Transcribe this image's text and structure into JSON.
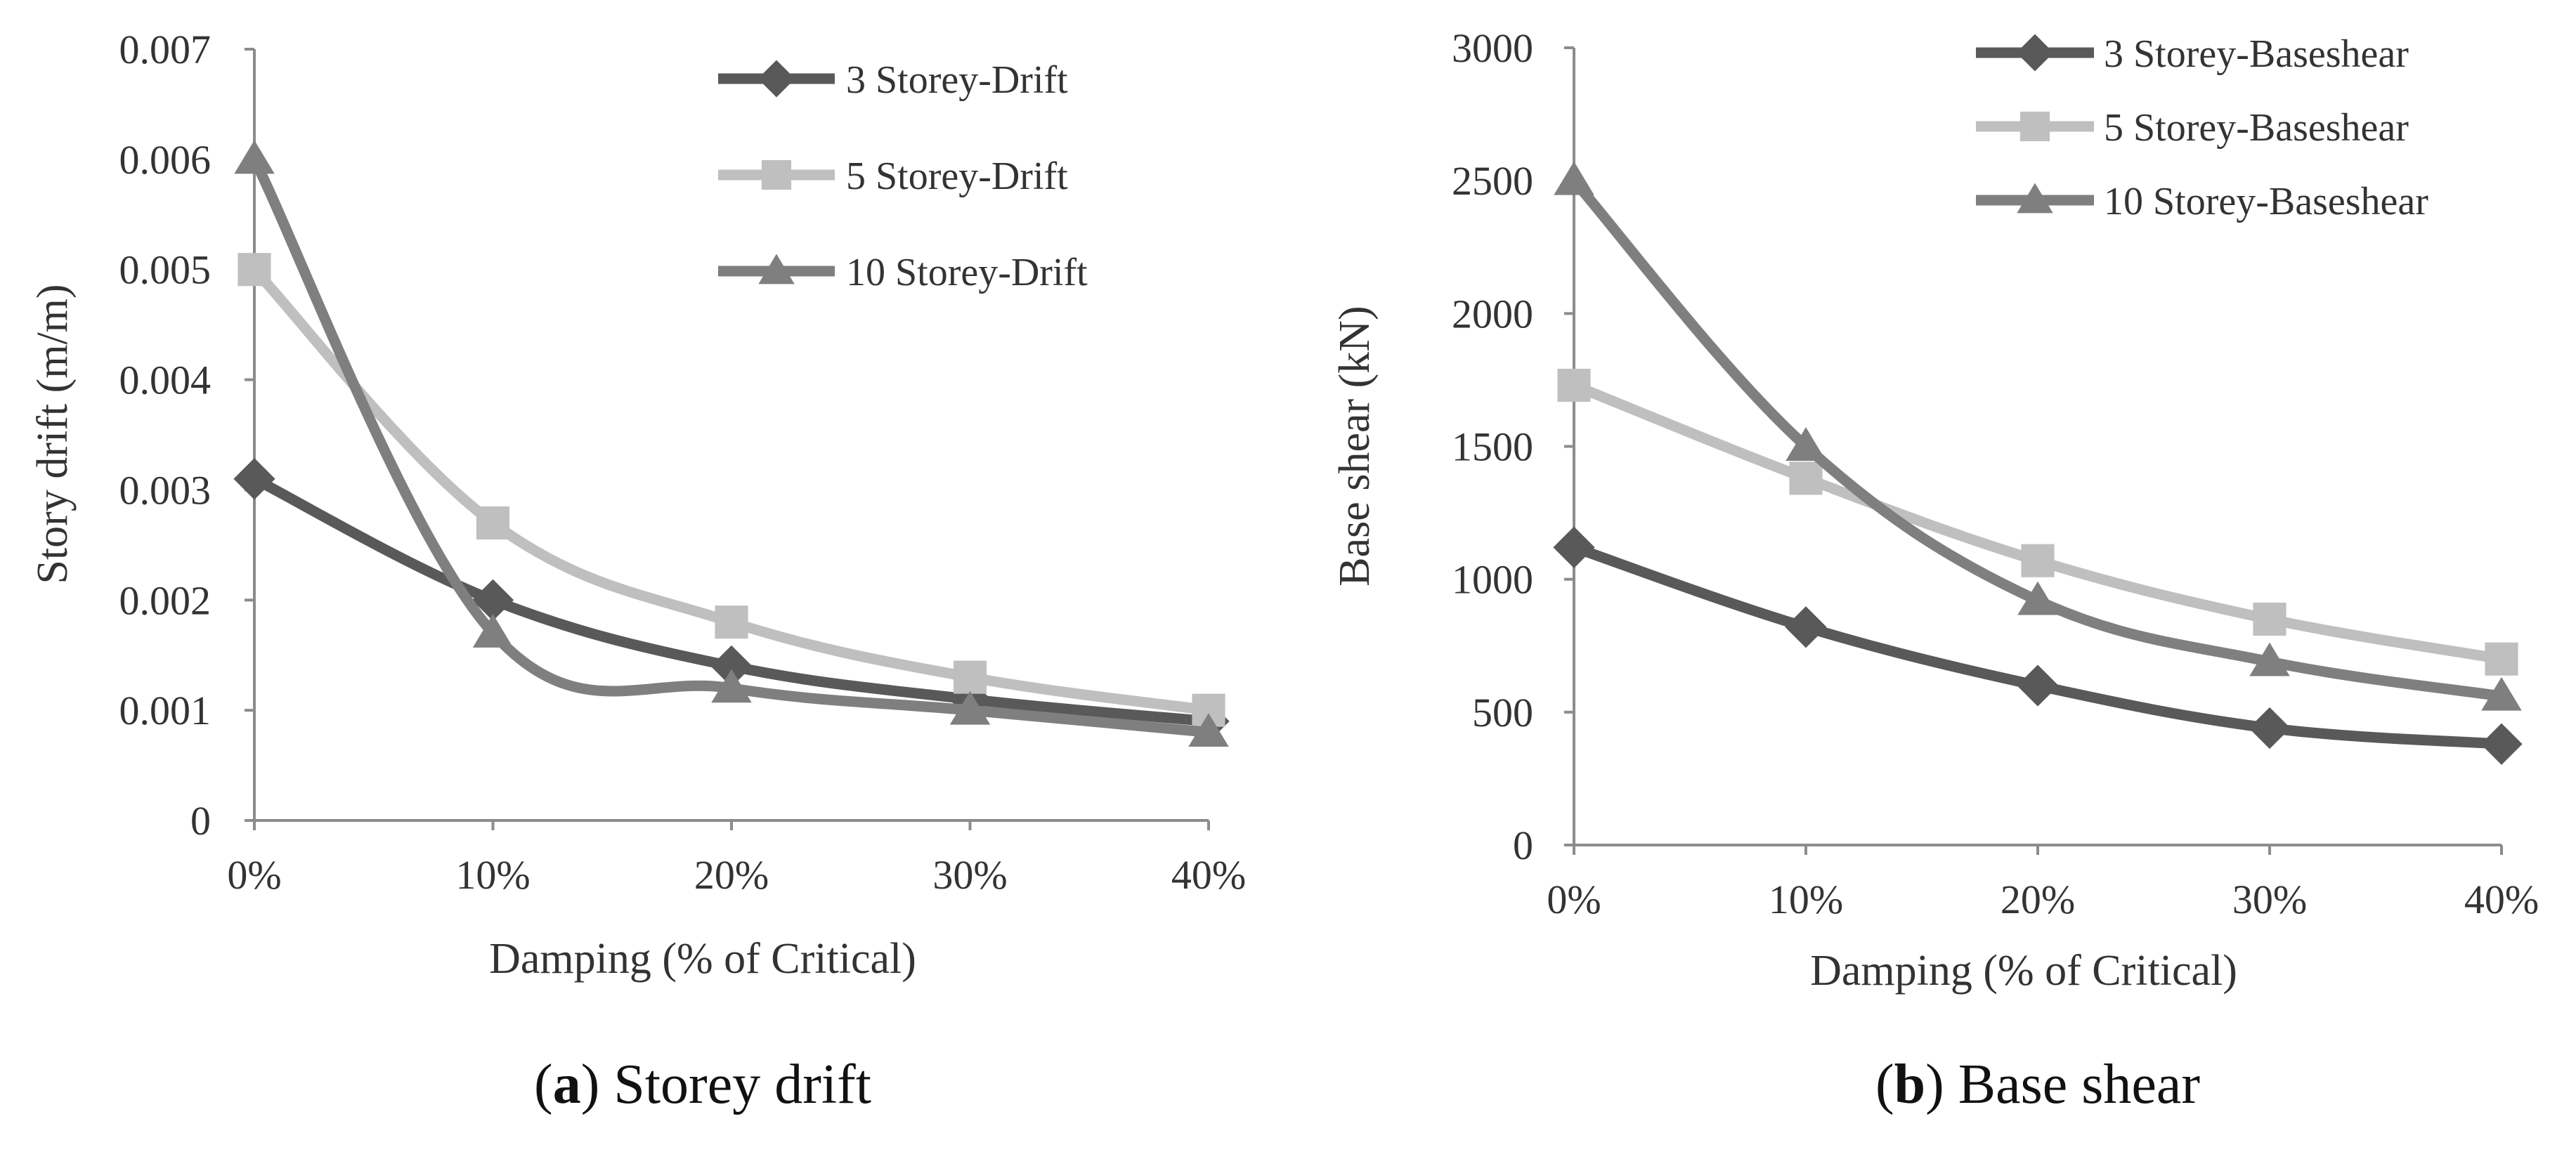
{
  "chart_data": [
    {
      "type": "line",
      "categories": [
        "0%",
        "10%",
        "20%",
        "30%",
        "40%"
      ],
      "series": [
        {
          "name": "3 Storey-Drift",
          "values": [
            0.0031,
            0.002,
            0.0014,
            0.0011,
            0.0009
          ],
          "color": "#595959",
          "marker": "diamond"
        },
        {
          "name": "5 Storey-Drift",
          "values": [
            0.005,
            0.0027,
            0.0018,
            0.0013,
            0.001
          ],
          "color": "#bfbfbf",
          "marker": "square"
        },
        {
          "name": "10 Storey-Drift",
          "values": [
            0.006,
            0.0017,
            0.0012,
            0.001,
            0.0008
          ],
          "color": "#7f7f7f",
          "marker": "triangle"
        }
      ],
      "yticks": [
        "0",
        "0.001",
        "0.002",
        "0.003",
        "0.004",
        "0.005",
        "0.006",
        "0.007"
      ],
      "ylim": [
        0,
        0.007
      ],
      "xlabel": "Damping  (% of Critical)",
      "ylabel": "Story drift (m/m)",
      "legend": "top-right",
      "grid": false,
      "caption": {
        "letter": "a",
        "text": " Storey drift"
      }
    },
    {
      "type": "line",
      "categories": [
        "0%",
        "10%",
        "20%",
        "30%",
        "40%"
      ],
      "series": [
        {
          "name": "3 Storey-Baseshear",
          "values": [
            1120,
            820,
            600,
            440,
            380
          ],
          "color": "#595959",
          "marker": "diamond"
        },
        {
          "name": "5 Storey-Baseshear",
          "values": [
            1730,
            1380,
            1070,
            850,
            700
          ],
          "color": "#bfbfbf",
          "marker": "square"
        },
        {
          "name": "10 Storey-Baseshear",
          "values": [
            2500,
            1500,
            920,
            690,
            560
          ],
          "color": "#7f7f7f",
          "marker": "triangle"
        }
      ],
      "yticks": [
        "0",
        "500",
        "1000",
        "1500",
        "2000",
        "2500",
        "3000"
      ],
      "ylim": [
        0,
        3000
      ],
      "xlabel": "Damping  (% of Critical)",
      "ylabel": "Base shear (kN)",
      "legend": "top-right",
      "grid": false,
      "caption": {
        "letter": "b",
        "text": " Base shear"
      }
    }
  ]
}
